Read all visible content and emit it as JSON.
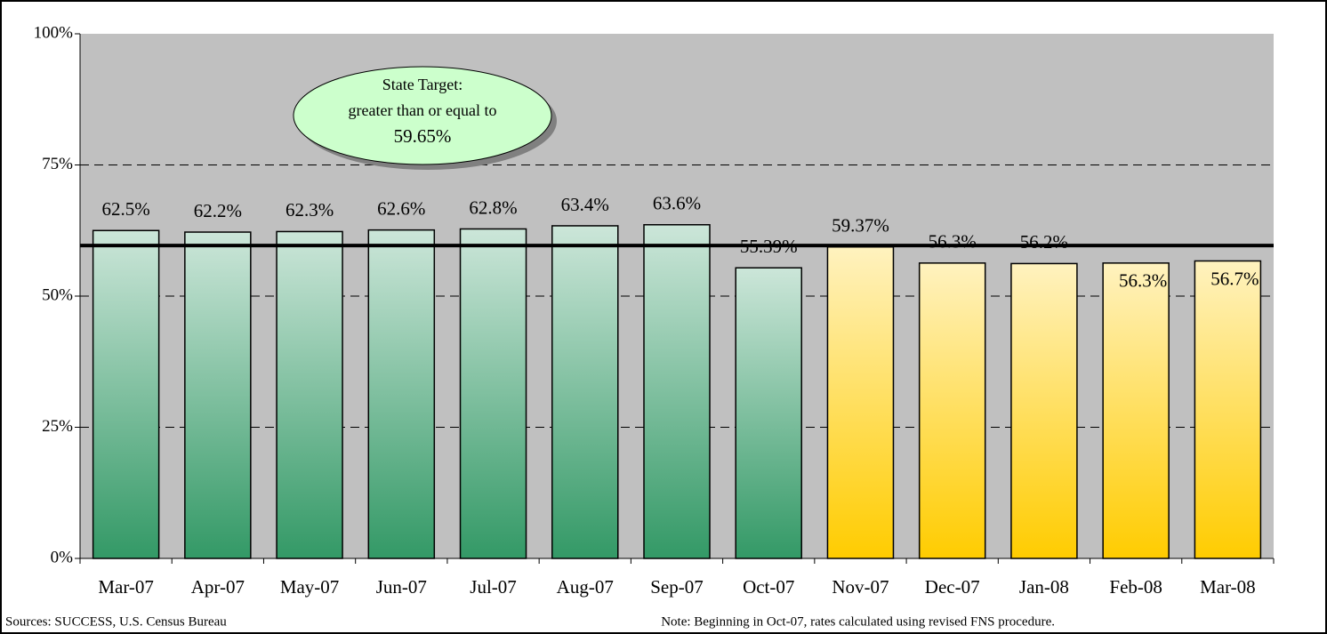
{
  "chart_data": {
    "type": "bar",
    "categories": [
      "Mar-07",
      "Apr-07",
      "May-07",
      "Jun-07",
      "Jul-07",
      "Aug-07",
      "Sep-07",
      "Oct-07",
      "Nov-07",
      "Dec-07",
      "Jan-08",
      "Feb-08",
      "Mar-08"
    ],
    "values": [
      62.5,
      62.2,
      62.3,
      62.6,
      62.8,
      63.4,
      63.6,
      55.39,
      59.37,
      56.3,
      56.2,
      56.3,
      56.7
    ],
    "value_labels": [
      "62.5%",
      "62.2%",
      "62.3%",
      "62.6%",
      "62.8%",
      "63.4%",
      "63.6%",
      "55.39%",
      "59.37%",
      "56.3%",
      "56.2%",
      "56.3%",
      "56.7%"
    ],
    "value_label_positions": [
      "above",
      "above",
      "above",
      "above",
      "above",
      "above",
      "above",
      "above",
      "above",
      "above",
      "above",
      "inside",
      "inside"
    ],
    "colors": [
      "#339966",
      "#339966",
      "#339966",
      "#339966",
      "#339966",
      "#339966",
      "#339966",
      "#339966",
      "#ffcc00",
      "#ffcc00",
      "#ffcc00",
      "#ffcc00",
      "#ffcc00"
    ],
    "ylim": [
      0,
      100
    ],
    "yticks": [
      {
        "value": 0,
        "label": "0%"
      },
      {
        "value": 25,
        "label": "25%"
      },
      {
        "value": 50,
        "label": "50%"
      },
      {
        "value": 75,
        "label": "75%"
      },
      {
        "value": 100,
        "label": "100%"
      }
    ],
    "grid": true,
    "target": 59.65,
    "annotation": [
      "State Target:",
      "greater than or equal to",
      "59.65%"
    ],
    "source": "Sources: SUCCESS, U.S. Census Bureau",
    "note": "Note: Beginning in Oct-07, rates calculated using revised FNS procedure."
  }
}
